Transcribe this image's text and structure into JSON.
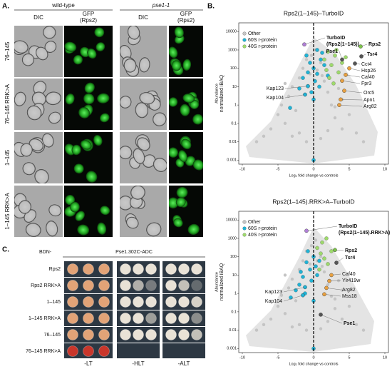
{
  "panels": {
    "a": "A.",
    "b": "B.",
    "c": "C."
  },
  "panel_a": {
    "strains": [
      "wild-type",
      "pse1-1"
    ],
    "dic": "DIC",
    "gfp": [
      "GFP",
      "(Rps2)"
    ],
    "rows": [
      "76–145",
      "76–145 RRK>A",
      "1–145",
      "1–145 RRK>A"
    ]
  },
  "chart_data": [
    {
      "type": "scatter",
      "title": "Rps2(1–145)–TurboID",
      "xlabel": "Log₂ fold change vs controls",
      "ylabel": "Abundance",
      "ylabel_sub": "normalized iBAQ",
      "xlim": [
        -10.5,
        10.5
      ],
      "xticks": [
        -10,
        -5,
        0,
        5,
        10
      ],
      "ylim": [
        0.0006,
        30000
      ],
      "yticks": [
        10000,
        1000,
        100,
        10,
        1,
        0.1,
        0.01,
        0.001
      ],
      "ylog": true,
      "legend": "upper left",
      "series": [
        {
          "name": "Other",
          "color": "#c4c4c4",
          "x": [
            -6,
            -5,
            -4.5,
            -4,
            -3.5,
            -3,
            -2.5,
            -2,
            -1.5,
            -1,
            -0.5,
            0.5,
            1,
            1.5,
            2,
            2.5,
            3,
            3.5,
            4,
            5,
            6,
            -7,
            -2,
            2,
            -3,
            3,
            -1,
            1,
            0.3,
            -0.3,
            -8,
            7,
            -4,
            4,
            1.2
          ],
          "values": [
            0.05,
            0.3,
            1,
            0.1,
            3,
            10,
            0.5,
            30,
            100,
            300,
            50,
            80,
            200,
            20,
            5,
            1,
            0.2,
            8,
            0.05,
            0.3,
            0.03,
            0.02,
            0.03,
            0.04,
            0.02,
            0.8,
            0.01,
            0.015,
            1000,
            500,
            0.01,
            0.01,
            15,
            2,
            40
          ]
        },
        {
          "name": "60S r-protein",
          "color": "#1fb3d6",
          "x": [
            -1,
            -0.5,
            0,
            0.5,
            1,
            1.5,
            -1.5,
            0.2,
            0.8,
            -0.3,
            1.2,
            -2,
            0.5,
            -0.8,
            0,
            2,
            -3.3,
            0
          ],
          "values": [
            500,
            200,
            100,
            50,
            300,
            150,
            30,
            20,
            10,
            5,
            700,
            8,
            1000,
            60,
            2,
            40,
            0.7,
            0.001
          ]
        },
        {
          "name": "40S r-protein",
          "color": "#9ed96c",
          "x": [
            1.5,
            2,
            2.5,
            3,
            3.5,
            4,
            2.2,
            3.2,
            1.8,
            4.5,
            2.8
          ],
          "values": [
            300,
            800,
            150,
            500,
            60,
            200,
            30,
            1000,
            80,
            400,
            15
          ]
        }
      ],
      "annotations": [
        {
          "label": [
            "TurboID",
            "(Rps2(1–145))"
          ],
          "x": -1.3,
          "y": 2000,
          "color": "#b07fd6",
          "bold": true
        },
        {
          "label": [
            "Rps2"
          ],
          "x": 6.6,
          "y": 1550,
          "color": "#7cc24a",
          "bold": true
        },
        {
          "label": [
            "Tsr4"
          ],
          "x": 6.7,
          "y": 447,
          "color": "#555555",
          "bold": true
        },
        {
          "label": [
            "Pse1"
          ],
          "x": 4,
          "y": 300,
          "color": "#555555",
          "bold": true
        },
        {
          "label": [
            "Cct4"
          ],
          "x": 5.8,
          "y": 182,
          "color": "#555555",
          "bold": false
        },
        {
          "label": [
            "Hsp26"
          ],
          "x": 5,
          "y": 100,
          "color": "#e8a040",
          "bold": false
        },
        {
          "label": [
            "Caf40"
          ],
          "x": 4.5,
          "y": 44,
          "color": "#e8a040",
          "bold": false
        },
        {
          "label": [
            "Fpr3"
          ],
          "x": 4,
          "y": 21,
          "color": "#e8a040",
          "bold": false
        },
        {
          "label": [
            "Orc5"
          ],
          "x": 4.3,
          "y": 6,
          "color": "#e8a040",
          "bold": false
        },
        {
          "label": [
            "Apn1"
          ],
          "x": 3.8,
          "y": 2,
          "color": "#e8a040",
          "bold": false
        },
        {
          "label": [
            "Arg82"
          ],
          "x": 3.6,
          "y": 1,
          "color": "#e8a040",
          "bold": false
        },
        {
          "label": [
            "Kap123"
          ],
          "x": -0.8,
          "y": 10.7,
          "color": "#1fb3d6",
          "bold": false
        },
        {
          "label": [
            "Kap104"
          ],
          "x": -1.2,
          "y": 3.7,
          "color": "#1fb3d6",
          "bold": false
        }
      ]
    },
    {
      "type": "scatter",
      "title": "Rps2(1–145).RRK>A–TurboID",
      "xlabel": "Log₂ fold change vs controls",
      "ylabel": "Abundance",
      "ylabel_sub": "normalized iBAQ",
      "xlim": [
        -10.5,
        10.5
      ],
      "xticks": [
        -10,
        -5,
        0,
        5,
        10
      ],
      "ylim": [
        0.0006,
        30000
      ],
      "yticks": [
        10000,
        1000,
        100,
        10,
        1,
        0.1,
        0.01,
        0.001
      ],
      "ylog": true,
      "legend": "upper left",
      "series": [
        {
          "name": "Other",
          "color": "#c4c4c4",
          "x": [
            -6,
            -5,
            -4.5,
            -4,
            -3.5,
            -3,
            -2.5,
            -2,
            -1.5,
            -1,
            -0.5,
            0.5,
            1,
            1.5,
            2,
            2.5,
            3,
            3.5,
            4,
            5,
            6,
            -7,
            -2,
            2,
            -3,
            3,
            -1,
            1,
            0.3,
            -0.3,
            -8,
            7,
            -4,
            4,
            1.2
          ],
          "values": [
            0.04,
            0.2,
            0.8,
            0.08,
            2,
            6,
            0.4,
            20,
            60,
            200,
            40,
            60,
            100,
            15,
            3,
            0.7,
            0.15,
            5,
            0.04,
            0.2,
            0.02,
            0.02,
            0.02,
            0.03,
            0.015,
            0.5,
            0.01,
            0.012,
            800,
            400,
            0.01,
            0.01,
            10,
            1.5,
            30
          ]
        },
        {
          "name": "60S r-protein",
          "color": "#1fb3d6",
          "x": [
            -1,
            -0.5,
            0,
            0.5,
            -1.5,
            -2,
            -0.8,
            0.3,
            -1.2,
            -0.3,
            -2.5,
            -1.8,
            0,
            -3.2,
            0.8,
            0
          ],
          "values": [
            50,
            20,
            100,
            10,
            8,
            3,
            200,
            30,
            1,
            5,
            1.5,
            15,
            0.4,
            0.6,
            60,
            0.001
          ]
        },
        {
          "name": "40S r-protein",
          "color": "#9ed96c",
          "x": [
            0.5,
            1,
            1.5,
            2,
            1.2,
            0.8,
            2.5,
            1.8
          ],
          "values": [
            300,
            150,
            80,
            40,
            600,
            20,
            200,
            1000
          ]
        }
      ],
      "annotations": [
        {
          "label": [
            "TurboID",
            "(Rps2(1–145).RRK>A)"
          ],
          "x": -1,
          "y": 2600,
          "color": "#b07fd6",
          "bold": true
        },
        {
          "label": [
            "Rps2"
          ],
          "x": 3,
          "y": 234,
          "color": "#7cc24a",
          "bold": true
        },
        {
          "label": [
            "Tsr4"
          ],
          "x": 3.2,
          "y": 47,
          "color": "#555555",
          "bold": true
        },
        {
          "label": [
            "Caf40"
          ],
          "x": 2.5,
          "y": 10,
          "color": "#e8a040",
          "bold": false
        },
        {
          "label": [
            "Ylr419w"
          ],
          "x": 2.2,
          "y": 4.8,
          "color": "#e8a040",
          "bold": false
        },
        {
          "label": [
            "Arg82"
          ],
          "x": 1.8,
          "y": 2,
          "color": "#e8a040",
          "bold": false
        },
        {
          "label": [
            "Mss18"
          ],
          "x": 1.5,
          "y": 0.9,
          "color": "#e8a040",
          "bold": false
        },
        {
          "label": [
            "Pse1"
          ],
          "x": 1,
          "y": 0.07,
          "color": "#555555",
          "bold": true
        },
        {
          "label": [
            "Kap123"
          ],
          "x": -1.2,
          "y": 2.2,
          "color": "#1fb3d6",
          "bold": false
        },
        {
          "label": [
            "Kap104"
          ],
          "x": -1.5,
          "y": 0.8,
          "color": "#1fb3d6",
          "bold": false
        }
      ]
    }
  ],
  "panel_c": {
    "prefix": "BDN-",
    "bait": "Pse1.302C-ADC",
    "rows": [
      "Rps2",
      "Rps2 RRK>A",
      "1–145",
      "1–145 RRK>A",
      "76–145",
      "76–145 RRK>A"
    ],
    "media": [
      "-LT",
      "-HLT",
      "-ALT"
    ]
  }
}
